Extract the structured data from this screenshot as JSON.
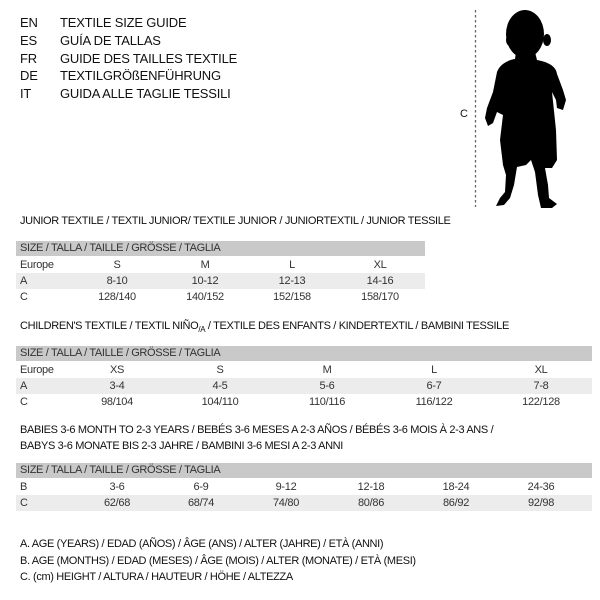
{
  "languages": [
    {
      "code": "EN",
      "text": "TEXTILE SIZE GUIDE"
    },
    {
      "code": "ES",
      "text": "GUÍA DE TALLAS"
    },
    {
      "code": "FR",
      "text": "GUIDE DES TAILLES TEXTILE"
    },
    {
      "code": "DE",
      "text": "TEXTILGRÖßENFÜHRUNG"
    },
    {
      "code": "IT",
      "text": "GUIDA ALLE TAGLIE TESSILI"
    }
  ],
  "figure": {
    "label": "C",
    "icon": "child-silhouette"
  },
  "junior": {
    "title": "JUNIOR TEXTILE / TEXTIL JUNIOR/ TEXTILE JUNIOR / JUNIORTEXTIL / JUNIOR TESSILE",
    "header": "SIZE / TALLA / TAILLE / GRÖSSE / TAGLIA",
    "rows": [
      {
        "label": "Europe",
        "values": [
          "S",
          "M",
          "L",
          "XL"
        ]
      },
      {
        "label": "A",
        "values": [
          "8-10",
          "10-12",
          "12-13",
          "14-16"
        ]
      },
      {
        "label": "C",
        "values": [
          "128/140",
          "140/152",
          "152/158",
          "158/170"
        ]
      }
    ]
  },
  "children": {
    "title_main": "CHILDREN'S TEXTILE / TEXTIL NIÑO",
    "title_sub": "/A",
    "title_rest": " / TEXTILE DES ENFANTS / KINDERTEXTIL / BAMBINI TESSILE",
    "header": "SIZE / TALLA / TAILLE / GRÖSSE / TAGLIA",
    "rows": [
      {
        "label": "Europe",
        "values": [
          "XS",
          "S",
          "M",
          "L",
          "XL"
        ]
      },
      {
        "label": "A",
        "values": [
          "3-4",
          "4-5",
          "5-6",
          "6-7",
          "7-8"
        ]
      },
      {
        "label": "C",
        "values": [
          "98/104",
          "104/110",
          "110/116",
          "116/122",
          "122/128"
        ]
      }
    ]
  },
  "babies": {
    "title_line1": "BABIES 3-6 MONTH TO 2-3 YEARS / BEBÉS 3-6 MESES A 2-3 AÑOS / BÉBÉS 3-6 MOIS À 2-3 ANS /",
    "title_line2": "BABYS 3-6 MONATE BIS 2-3 JAHRE / BAMBINI 3-6 MESI A 2-3 ANNI",
    "header": "SIZE / TALLA / TAILLE / GRÖSSE / TAGLIA",
    "rows": [
      {
        "label": "B",
        "values": [
          "3-6",
          "6-9",
          "9-12",
          "12-18",
          "18-24",
          "24-36"
        ]
      },
      {
        "label": "C",
        "values": [
          "62/68",
          "68/74",
          "74/80",
          "80/86",
          "86/92",
          "92/98"
        ]
      }
    ]
  },
  "legend": [
    "A. AGE (YEARS) / EDAD (AÑOS) / ÂGE (ANS) / ALTER (JAHRE) / ETÀ (ANNI)",
    "B. AGE (MONTHS) / EDAD (MESES) / ÂGE (MOIS) / ALTER (MONATE) / ETÀ (MESI)",
    "C. (cm) HEIGHT / ALTURA / HAUTEUR / HÖHE / ALTEZZA"
  ]
}
